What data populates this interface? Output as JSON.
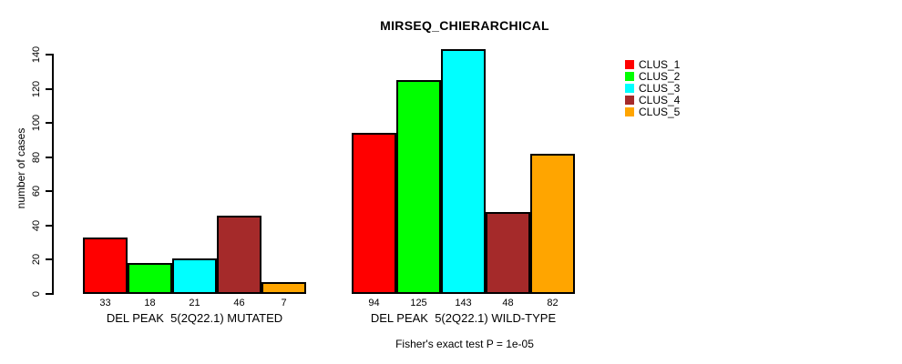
{
  "title": "MIRSEQ_CHIERARCHICAL",
  "chart_data": {
    "type": "bar",
    "title": "MIRSEQ_CHIERARCHICAL",
    "ylabel": "number of cases",
    "xlabel": "",
    "ylim": [
      0,
      140
    ],
    "yticks": [
      0,
      20,
      40,
      60,
      80,
      100,
      120,
      140
    ],
    "grid": false,
    "legend_position": "right",
    "series": [
      {
        "name": "CLUS_1",
        "color": "#FF0000"
      },
      {
        "name": "CLUS_2",
        "color": "#00FF00"
      },
      {
        "name": "CLUS_3",
        "color": "#00FFFF"
      },
      {
        "name": "CLUS_4",
        "color": "#A52A2A"
      },
      {
        "name": "CLUS_5",
        "color": "#FFA500"
      }
    ],
    "groups": [
      {
        "label": "DEL PEAK  5(2Q22.1) MUTATED",
        "values": [
          33,
          18,
          21,
          46,
          7
        ]
      },
      {
        "label": "DEL PEAK  5(2Q22.1) WILD-TYPE",
        "values": [
          94,
          125,
          143,
          48,
          82
        ]
      }
    ],
    "bar_border_color": "#000000",
    "footnote": "Fisher's exact test P = 1e-05"
  }
}
